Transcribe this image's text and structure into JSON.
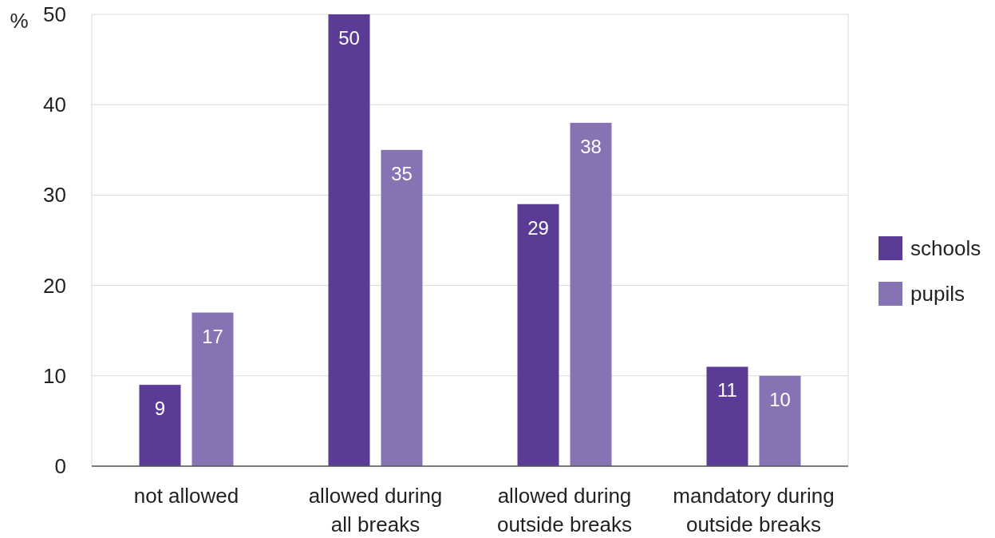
{
  "chart_data": {
    "type": "bar",
    "ylabel": "%",
    "categories": [
      "not allowed",
      "allowed during all breaks",
      "allowed during outside breaks",
      "mandatory during outside breaks"
    ],
    "series": [
      {
        "name": "schools",
        "color": "#5a3c96",
        "values": [
          9,
          50,
          29,
          11
        ]
      },
      {
        "name": "pupils",
        "color": "#8673b4",
        "values": [
          17,
          35,
          38,
          10
        ]
      }
    ],
    "ylim": [
      0,
      50
    ],
    "yticks": [
      0,
      10,
      20,
      30,
      40,
      50
    ],
    "grid": "y",
    "legend": "right",
    "data_labels": true
  }
}
